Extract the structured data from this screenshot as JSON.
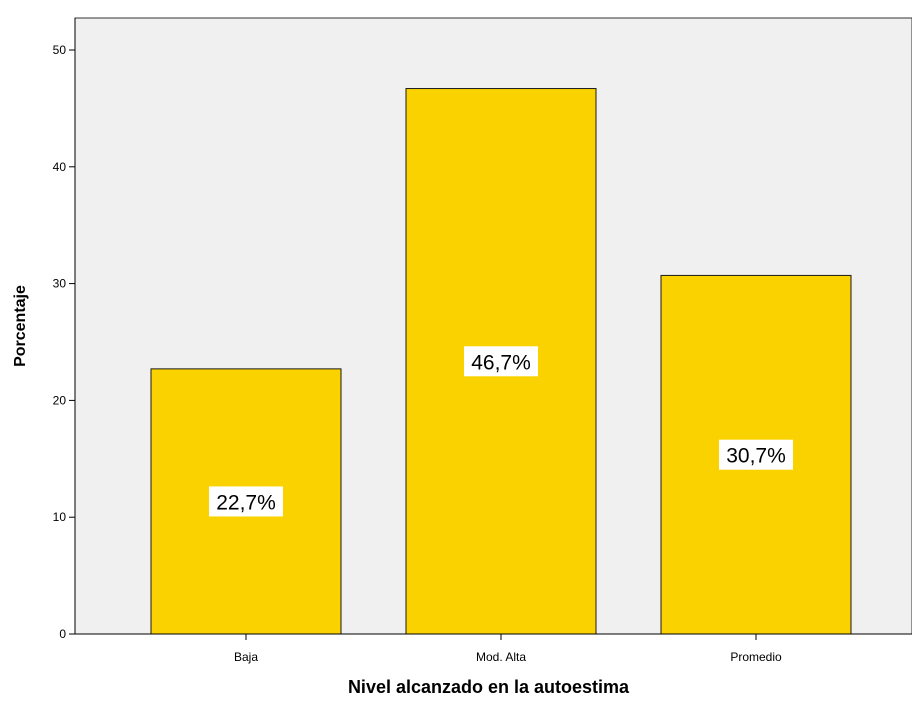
{
  "chart_data": {
    "type": "bar",
    "categories": [
      "Baja",
      "Mod. Alta",
      "Promedio"
    ],
    "values": [
      22.7,
      46.7,
      30.7
    ],
    "data_labels": [
      "22,7%",
      "46,7%",
      "30,7%"
    ],
    "xlabel": "Nivel alcanzado en la autoestima",
    "ylabel": "Porcentaje",
    "ylim": [
      0,
      50
    ],
    "yticks": [
      0,
      10,
      20,
      30,
      40,
      50
    ],
    "grid": false,
    "legend": "none",
    "colors": {
      "bar_fill": "#FAD200",
      "bar_stroke": "#1a1a1a",
      "plot_background": "#F0F0F0",
      "label_background": "#FFFFFF",
      "text": "#000000"
    }
  }
}
